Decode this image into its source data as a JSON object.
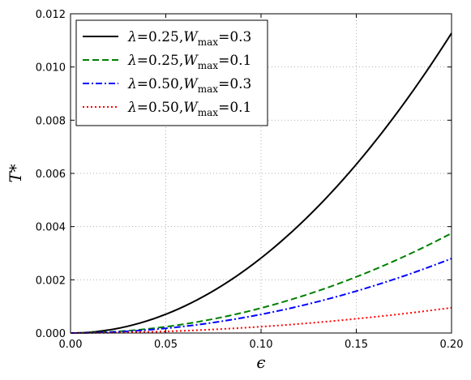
{
  "chart_data": {
    "type": "line",
    "xlabel": "ϵ",
    "ylabel": "T*",
    "xlim": [
      0.0,
      0.2
    ],
    "ylim": [
      0.0,
      0.012
    ],
    "x_ticks": [
      0.0,
      0.05,
      0.1,
      0.15,
      0.2
    ],
    "y_ticks": [
      0.0,
      0.002,
      0.004,
      0.006,
      0.008,
      0.01,
      0.012
    ],
    "x_tick_labels": [
      "0.00",
      "0.05",
      "0.10",
      "0.15",
      "0.20"
    ],
    "y_tick_labels": [
      "0.000",
      "0.002",
      "0.004",
      "0.006",
      "0.008",
      "0.010",
      "0.012"
    ],
    "grid": true,
    "legend_position": "top-left",
    "x": [
      0.0,
      0.02,
      0.04,
      0.06,
      0.08,
      0.1,
      0.12,
      0.14,
      0.16,
      0.18,
      0.2
    ],
    "series": [
      {
        "name": "λ=0.25,Wmax=0.3",
        "legend": {
          "lambda": "0.25",
          "w": "0.3"
        },
        "style": "solid",
        "color": "#000000",
        "values": [
          0.0,
          0.00011,
          0.00045,
          0.00101,
          0.0018,
          0.00282,
          0.00406,
          0.00552,
          0.00721,
          0.00913,
          0.01127
        ]
      },
      {
        "name": "λ=0.25,Wmax=0.1",
        "legend": {
          "lambda": "0.25",
          "w": "0.1"
        },
        "style": "dashed",
        "color": "#008000",
        "values": [
          0.0,
          3.7e-05,
          0.00015,
          0.00034,
          0.0006,
          0.00094,
          0.00135,
          0.00184,
          0.0024,
          0.00304,
          0.00375
        ]
      },
      {
        "name": "λ=0.50,Wmax=0.3",
        "legend": {
          "lambda": "0.50",
          "w": "0.3"
        },
        "style": "dashdot",
        "color": "#0000ff",
        "values": [
          0.0,
          2.8e-05,
          0.00011,
          0.00025,
          0.00045,
          0.0007,
          0.00101,
          0.00137,
          0.00179,
          0.00227,
          0.0028
        ]
      },
      {
        "name": "λ=0.50,Wmax=0.1",
        "legend": {
          "lambda": "0.50",
          "w": "0.1"
        },
        "style": "dotted",
        "color": "#ff0000",
        "values": [
          0.0,
          9.5e-06,
          3.8e-05,
          8.5e-05,
          0.00015,
          0.00024,
          0.00034,
          0.00046,
          0.0006,
          0.00077,
          0.00095
        ]
      }
    ]
  }
}
